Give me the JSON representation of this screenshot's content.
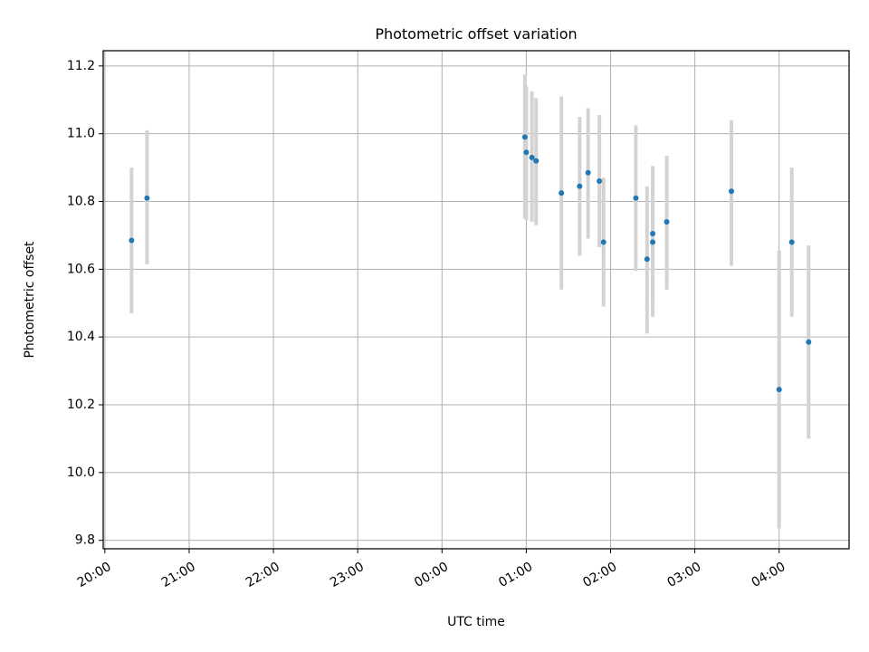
{
  "chart_data": {
    "type": "scatter",
    "title": "Photometric offset variation",
    "xlabel": "UTC time",
    "ylabel": "Photometric offset",
    "grid": true,
    "x_tick_labels": [
      "20:00",
      "21:00",
      "22:00",
      "23:00",
      "00:00",
      "01:00",
      "02:00",
      "03:00",
      "04:00"
    ],
    "x_tick_hours": [
      0,
      1,
      2,
      3,
      4,
      5,
      6,
      7,
      8
    ],
    "xlim_hours_from_20h": [
      -0.02,
      8.83
    ],
    "y_ticks": [
      9.8,
      10.0,
      10.2,
      10.4,
      10.6,
      10.8,
      11.0,
      11.2
    ],
    "y_tick_labels": [
      "9.8",
      "10.0",
      "10.2",
      "10.4",
      "10.6",
      "10.8",
      "11.0",
      "11.2"
    ],
    "ylim": [
      9.775,
      11.245
    ],
    "series": [
      {
        "marker_color": "#1f77b4",
        "errorbar_color": "#d3d3d3",
        "points": [
          {
            "time": "20:19",
            "y": 10.685,
            "y_low": 10.47,
            "y_high": 10.9
          },
          {
            "time": "20:30",
            "y": 10.81,
            "y_low": 10.615,
            "y_high": 11.01
          },
          {
            "time": "00:59",
            "y": 10.99,
            "y_low": 10.75,
            "y_high": 11.175
          },
          {
            "time": "01:00",
            "y": 10.945,
            "y_low": 10.745,
            "y_high": 11.14
          },
          {
            "time": "01:04",
            "y": 10.93,
            "y_low": 10.74,
            "y_high": 11.125
          },
          {
            "time": "01:07",
            "y": 10.92,
            "y_low": 10.73,
            "y_high": 11.105
          },
          {
            "time": "01:25",
            "y": 10.825,
            "y_low": 10.54,
            "y_high": 11.11
          },
          {
            "time": "01:38",
            "y": 10.845,
            "y_low": 10.64,
            "y_high": 11.05
          },
          {
            "time": "01:44",
            "y": 10.885,
            "y_low": 10.69,
            "y_high": 11.075
          },
          {
            "time": "01:52",
            "y": 10.86,
            "y_low": 10.665,
            "y_high": 11.055
          },
          {
            "time": "01:55",
            "y": 10.68,
            "y_low": 10.49,
            "y_high": 10.87
          },
          {
            "time": "02:18",
            "y": 10.81,
            "y_low": 10.595,
            "y_high": 11.025
          },
          {
            "time": "02:26",
            "y": 10.63,
            "y_low": 10.41,
            "y_high": 10.845
          },
          {
            "time": "02:30",
            "y": 10.705,
            "y_low": 10.505,
            "y_high": 10.905
          },
          {
            "time": "02:30",
            "y": 10.68,
            "y_low": 10.46,
            "y_high": 10.9
          },
          {
            "time": "02:40",
            "y": 10.74,
            "y_low": 10.54,
            "y_high": 10.935
          },
          {
            "time": "03:26",
            "y": 10.83,
            "y_low": 10.61,
            "y_high": 11.04
          },
          {
            "time": "04:00",
            "y": 10.245,
            "y_low": 9.835,
            "y_high": 10.655
          },
          {
            "time": "04:09",
            "y": 10.68,
            "y_low": 10.46,
            "y_high": 10.9
          },
          {
            "time": "04:21",
            "y": 10.385,
            "y_low": 10.1,
            "y_high": 10.67
          }
        ]
      }
    ]
  }
}
